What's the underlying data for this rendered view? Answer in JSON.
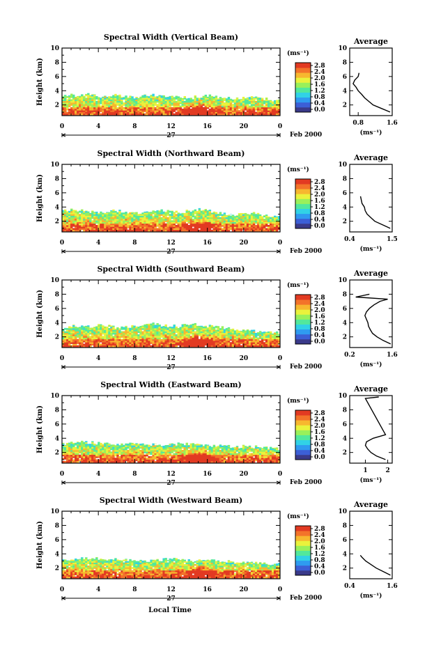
{
  "figure": {
    "x_axis_label": "Local Time",
    "date_day": "27",
    "date_month_year": "Feb 2000",
    "colorbar_unit": "(ms⁻¹)",
    "colorbar_ticks": [
      "2.8",
      "2.4",
      "2.0",
      "1.6",
      "1.2",
      "0.8",
      "0.4",
      "0.0"
    ],
    "colormap": [
      "#3a3a8a",
      "#3c5fd6",
      "#2f9bf0",
      "#31d2e6",
      "#52e89c",
      "#9af05a",
      "#eaf23c",
      "#f7b72f",
      "#f3732a",
      "#e23a22"
    ],
    "average_label": "Average"
  },
  "chart_data": [
    {
      "type": "heatmap",
      "title": "Spectral Width (Vertical Beam)",
      "ylabel": "Height (km)",
      "xlim": [
        0,
        24
      ],
      "ylim": [
        0.5,
        10
      ],
      "x_ticks": [
        "0",
        "4",
        "8",
        "12",
        "16",
        "20",
        "0"
      ],
      "y_ticks": [
        "2",
        "4",
        "6",
        "8",
        "10"
      ],
      "echo_top_km": [
        3.2,
        3.4,
        3.3,
        3.5,
        3.2,
        3.3,
        3.4,
        3.2,
        3.1,
        3.3,
        3.4,
        3.3,
        3.2,
        3.0,
        3.1,
        3.2,
        3.3,
        3.1,
        3.0,
        2.9,
        3.1,
        3.0,
        2.9,
        2.7,
        2.6
      ],
      "average_profile": {
        "xlabel": "(ms⁻¹)",
        "x_ticks": [
          "0.8",
          "1.6"
        ],
        "xlim": [
          0.6,
          1.6
        ],
        "height_km": [
          1.0,
          1.5,
          2.0,
          2.5,
          3.0,
          3.5,
          4.0,
          4.5,
          5.0,
          5.5,
          6.0,
          6.5
        ],
        "width_ms": [
          1.55,
          1.35,
          1.15,
          1.05,
          0.95,
          0.88,
          0.8,
          0.75,
          0.68,
          0.72,
          0.8,
          0.82
        ]
      }
    },
    {
      "type": "heatmap",
      "title": "Spectral Width (Northward Beam)",
      "ylabel": "Height (km)",
      "xlim": [
        0,
        24
      ],
      "ylim": [
        0.5,
        10
      ],
      "x_ticks": [
        "0",
        "4",
        "8",
        "12",
        "16",
        "20",
        "0"
      ],
      "y_ticks": [
        "2",
        "4",
        "6",
        "8",
        "10"
      ],
      "echo_top_km": [
        3.4,
        3.6,
        3.5,
        3.3,
        3.2,
        3.4,
        3.5,
        3.3,
        3.2,
        3.3,
        3.5,
        3.6,
        3.4,
        3.3,
        3.5,
        3.7,
        3.5,
        3.2,
        3.0,
        2.9,
        3.0,
        3.1,
        2.9,
        2.8,
        2.6
      ],
      "average_profile": {
        "xlabel": "(ms⁻¹)",
        "x_ticks": [
          "0.4",
          "1.5"
        ],
        "xlim": [
          0.4,
          1.5
        ],
        "height_km": [
          1.0,
          1.5,
          2.0,
          2.5,
          3.0,
          3.5,
          4.0,
          4.5,
          5.5
        ],
        "width_ms": [
          1.45,
          1.25,
          1.05,
          0.95,
          0.85,
          0.8,
          0.78,
          0.72,
          0.68
        ]
      }
    },
    {
      "type": "heatmap",
      "title": "Spectral Width (Southward Beam)",
      "ylabel": "Height (km)",
      "xlim": [
        0,
        24
      ],
      "ylim": [
        0.5,
        10
      ],
      "x_ticks": [
        "0",
        "4",
        "8",
        "12",
        "16",
        "20",
        "0"
      ],
      "y_ticks": [
        "2",
        "4",
        "6",
        "8",
        "10"
      ],
      "echo_top_km": [
        3.3,
        3.6,
        3.5,
        3.4,
        3.6,
        3.5,
        3.3,
        3.4,
        3.6,
        3.7,
        3.8,
        3.6,
        3.5,
        3.6,
        3.8,
        3.7,
        3.5,
        3.4,
        3.2,
        3.0,
        2.9,
        2.8,
        2.7,
        2.6,
        2.5
      ],
      "average_profile": {
        "xlabel": "(ms⁻¹)",
        "x_ticks": [
          "0.2",
          "1.6"
        ],
        "xlim": [
          0.2,
          1.6
        ],
        "height_km": [
          1.0,
          1.5,
          2.0,
          2.5,
          3.0,
          3.5,
          4.0,
          5.0,
          5.5,
          6.0,
          6.5,
          7.0,
          7.3,
          7.6,
          8.0
        ],
        "width_ms": [
          1.55,
          1.3,
          1.1,
          0.95,
          0.88,
          0.82,
          0.8,
          0.7,
          0.75,
          0.85,
          1.0,
          1.2,
          1.45,
          0.4,
          0.85
        ]
      }
    },
    {
      "type": "heatmap",
      "title": "Spectral Width (Eastward Beam)",
      "ylabel": "Height (km)",
      "xlim": [
        0,
        24
      ],
      "ylim": [
        0.5,
        10
      ],
      "x_ticks": [
        "0",
        "4",
        "8",
        "12",
        "16",
        "20",
        "0"
      ],
      "y_ticks": [
        "2",
        "4",
        "6",
        "8",
        "10"
      ],
      "echo_top_km": [
        3.2,
        3.3,
        3.5,
        3.4,
        3.3,
        3.2,
        3.1,
        3.2,
        3.3,
        3.2,
        3.1,
        3.0,
        3.1,
        3.3,
        3.2,
        3.1,
        3.0,
        3.0,
        2.9,
        2.8,
        2.9,
        2.8,
        2.7,
        2.6,
        2.5
      ],
      "average_profile": {
        "xlabel": "(ms⁻¹)",
        "x_ticks": [
          "1",
          "2"
        ],
        "xlim": [
          0.3,
          2.2
        ],
        "height_km": [
          1.0,
          1.5,
          2.0,
          2.5,
          3.0,
          3.5,
          4.0,
          4.5,
          9.6,
          9.8
        ],
        "width_ms": [
          1.9,
          1.5,
          1.25,
          1.1,
          1.0,
          1.05,
          1.35,
          1.9,
          1.0,
          1.6
        ]
      }
    },
    {
      "type": "heatmap",
      "title": "Spectral Width (Westward Beam)",
      "ylabel": "Height (km)",
      "xlim": [
        0,
        24
      ],
      "ylim": [
        0.5,
        10
      ],
      "x_ticks": [
        "0",
        "4",
        "8",
        "12",
        "16",
        "20",
        "0"
      ],
      "y_ticks": [
        "2",
        "4",
        "6",
        "8",
        "10"
      ],
      "echo_top_km": [
        3.1,
        3.2,
        3.3,
        3.4,
        3.3,
        3.2,
        3.3,
        3.2,
        3.1,
        3.0,
        3.1,
        3.2,
        3.3,
        3.2,
        3.1,
        3.0,
        3.1,
        3.0,
        2.9,
        2.9,
        2.8,
        2.8,
        2.7,
        2.6,
        2.5
      ],
      "average_profile": {
        "xlabel": "(ms⁻¹)",
        "x_ticks": [
          "0.4",
          "1.6"
        ],
        "xlim": [
          0.4,
          1.6
        ],
        "height_km": [
          1.0,
          1.5,
          2.0,
          2.5,
          3.0,
          3.5,
          3.8
        ],
        "width_ms": [
          1.55,
          1.35,
          1.15,
          1.0,
          0.85,
          0.75,
          0.7
        ]
      }
    }
  ]
}
